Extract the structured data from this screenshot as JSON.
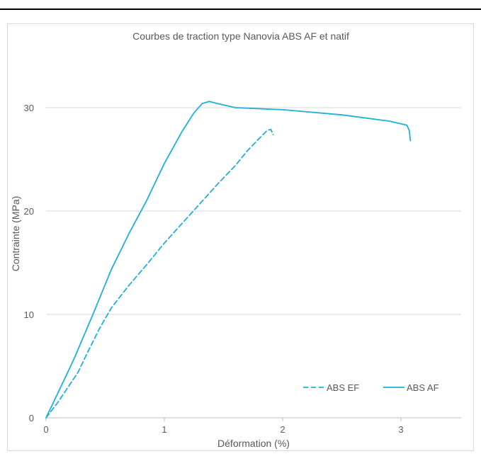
{
  "chart_data": {
    "type": "line",
    "title": "Courbes de traction type Nanovia ABS AF et natif",
    "xlabel": "Déformation (%)",
    "ylabel": "Contrainte (MPa)",
    "xlim": [
      0,
      3.5
    ],
    "ylim": [
      0,
      35
    ],
    "x_ticks": [
      0,
      1,
      2,
      3
    ],
    "y_ticks": [
      0,
      10,
      20,
      30
    ],
    "grid": "horizontal",
    "legend_position": "bottom-right",
    "color": "#1fb0d8",
    "series": [
      {
        "name": "ABS EF",
        "style": "dashed",
        "points": [
          [
            0,
            0
          ],
          [
            0.1,
            1.5
          ],
          [
            0.2,
            3.2
          ],
          [
            0.27,
            4.4
          ],
          [
            0.35,
            6.3
          ],
          [
            0.45,
            8.6
          ],
          [
            0.55,
            10.6
          ],
          [
            0.7,
            12.8
          ],
          [
            0.85,
            14.8
          ],
          [
            1.0,
            16.9
          ],
          [
            1.15,
            18.8
          ],
          [
            1.3,
            20.7
          ],
          [
            1.45,
            22.6
          ],
          [
            1.6,
            24.4
          ],
          [
            1.7,
            25.8
          ],
          [
            1.8,
            27.0
          ],
          [
            1.87,
            27.8
          ],
          [
            1.9,
            27.9
          ],
          [
            1.92,
            27.4
          ]
        ]
      },
      {
        "name": "ABS AF",
        "style": "solid",
        "points": [
          [
            0,
            0
          ],
          [
            0.1,
            2.4
          ],
          [
            0.2,
            4.8
          ],
          [
            0.26,
            6.3
          ],
          [
            0.27,
            6.6
          ],
          [
            0.4,
            10.1
          ],
          [
            0.55,
            14.3
          ],
          [
            0.7,
            17.8
          ],
          [
            0.85,
            21.0
          ],
          [
            1.0,
            24.6
          ],
          [
            1.15,
            27.7
          ],
          [
            1.25,
            29.5
          ],
          [
            1.32,
            30.4
          ],
          [
            1.38,
            30.6
          ],
          [
            1.45,
            30.4
          ],
          [
            1.6,
            30.0
          ],
          [
            2.0,
            29.8
          ],
          [
            2.5,
            29.3
          ],
          [
            2.9,
            28.7
          ],
          [
            3.05,
            28.3
          ],
          [
            3.07,
            27.8
          ],
          [
            3.08,
            26.8
          ]
        ]
      }
    ]
  }
}
